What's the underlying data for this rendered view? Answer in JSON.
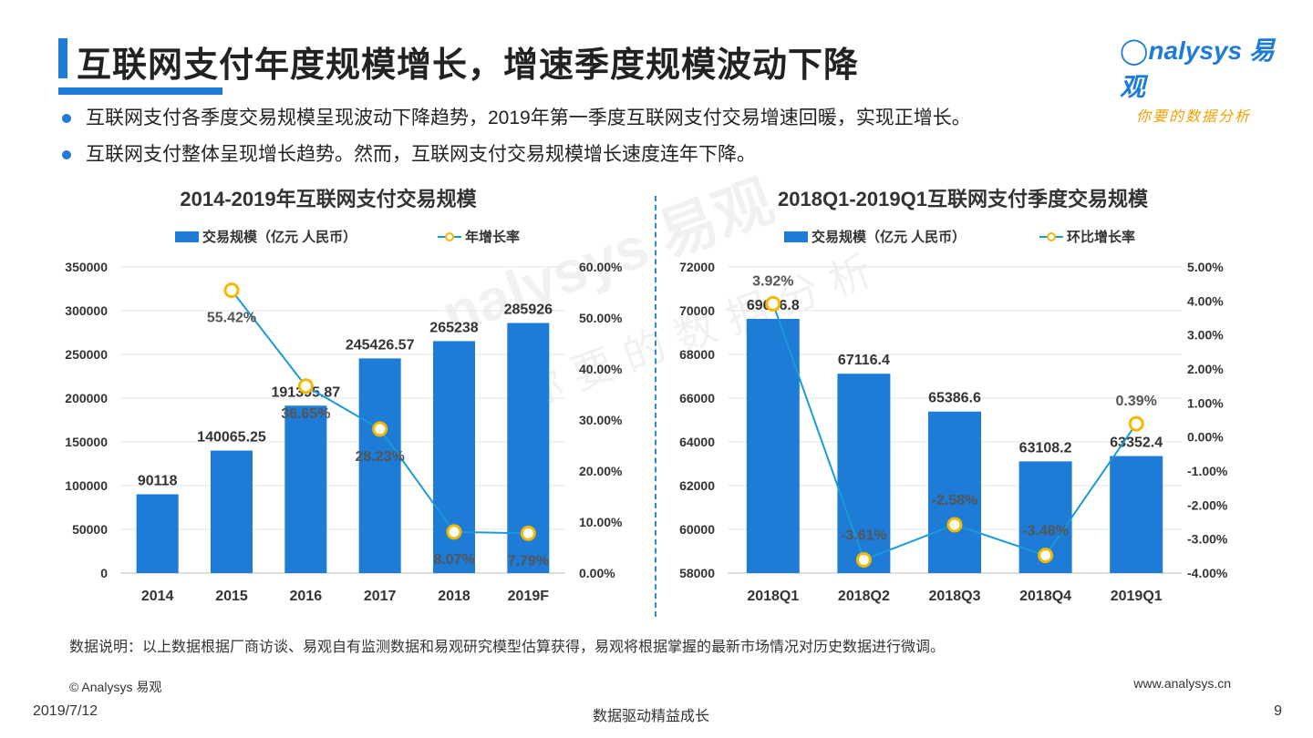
{
  "header": {
    "title": "互联网支付年度规模增长，增速季度规模波动下降",
    "logo_text": "nalysys 易观",
    "logo_sub": "你要的数据分析"
  },
  "bullets": [
    "互联网支付各季度交易规模呈现波动下降趋势，2019年第一季度互联网支付交易增速回暖，实现正增长。",
    "互联网支付整体呈现增长趋势。然而，互联网支付交易规模增长速度连年下降。"
  ],
  "chart_data": [
    {
      "type": "bar",
      "title": "2014-2019年互联网支付交易规模",
      "categories": [
        "2014",
        "2015",
        "2016",
        "2017",
        "2018",
        "2019F"
      ],
      "series": [
        {
          "name": "交易规模（亿元 人民币）",
          "type": "bar",
          "values": [
            90118,
            140065.25,
            191395.87,
            245426.57,
            265238,
            285926
          ],
          "labels": [
            "90118",
            "140065.25",
            "191395.87",
            "245426.57",
            "265238",
            "285926"
          ],
          "color": "#1e7bd6"
        },
        {
          "name": "年增长率",
          "type": "line",
          "axis": "right",
          "values": [
            null,
            55.42,
            36.65,
            28.23,
            8.07,
            7.79
          ],
          "labels": [
            "",
            "55.42%",
            "36.65%",
            "28.23%",
            "8.07%",
            "7.79%"
          ],
          "color": "#1a9ad8",
          "marker_color": "#f5b800"
        }
      ],
      "y_left": {
        "min": 0,
        "max": 350000,
        "ticks": [
          "0",
          "50000",
          "100000",
          "150000",
          "200000",
          "250000",
          "300000",
          "350000"
        ]
      },
      "y_right": {
        "min": 0,
        "max": 60,
        "ticks": [
          "0.00%",
          "10.00%",
          "20.00%",
          "30.00%",
          "40.00%",
          "50.00%",
          "60.00%"
        ]
      },
      "legend": "top",
      "grid": true
    },
    {
      "type": "bar",
      "title": "2018Q1-2019Q1互联网支付季度交易规模",
      "categories": [
        "2018Q1",
        "2018Q2",
        "2018Q3",
        "2018Q4",
        "2019Q1"
      ],
      "series": [
        {
          "name": "交易规模（亿元 人民币）",
          "type": "bar",
          "values": [
            69626.8,
            67116.4,
            65386.6,
            63108.2,
            63352.4
          ],
          "labels": [
            "69626.8",
            "67116.4",
            "65386.6",
            "63108.2",
            "63352.4"
          ],
          "color": "#1e7bd6"
        },
        {
          "name": "环比增长率",
          "type": "line",
          "axis": "right",
          "values": [
            3.92,
            -3.61,
            -2.58,
            -3.48,
            0.39
          ],
          "labels": [
            "3.92%",
            "-3.61%",
            "-2.58%",
            "-3.48%",
            "0.39%"
          ],
          "color": "#1a9ad8",
          "marker_color": "#f5b800"
        }
      ],
      "y_left": {
        "min": 58000,
        "max": 72000,
        "ticks": [
          "58000",
          "60000",
          "62000",
          "64000",
          "66000",
          "68000",
          "70000",
          "72000"
        ]
      },
      "y_right": {
        "min": -4,
        "max": 5,
        "ticks": [
          "-4.00%",
          "-3.00%",
          "-2.00%",
          "-1.00%",
          "0.00%",
          "1.00%",
          "2.00%",
          "3.00%",
          "4.00%",
          "5.00%"
        ]
      },
      "legend": "top",
      "grid": true
    }
  ],
  "footer": {
    "note": "数据说明：以上数据根据厂商访谈、易观自有监测数据和易观研究模型估算获得，易观将根据掌握的最新市场情况对历史数据进行微调。",
    "copyright": "© Analysys 易观",
    "site": "www.analysys.cn",
    "date": "2019/7/12",
    "slogan": "数据驱动精益成长",
    "page": "9"
  },
  "watermark": {
    "text": "nalysys 易观",
    "sub": "你要的数据分析"
  },
  "colors": {
    "accent": "#1e7bd6",
    "line": "#1a9ad8",
    "marker": "#f5b800"
  }
}
